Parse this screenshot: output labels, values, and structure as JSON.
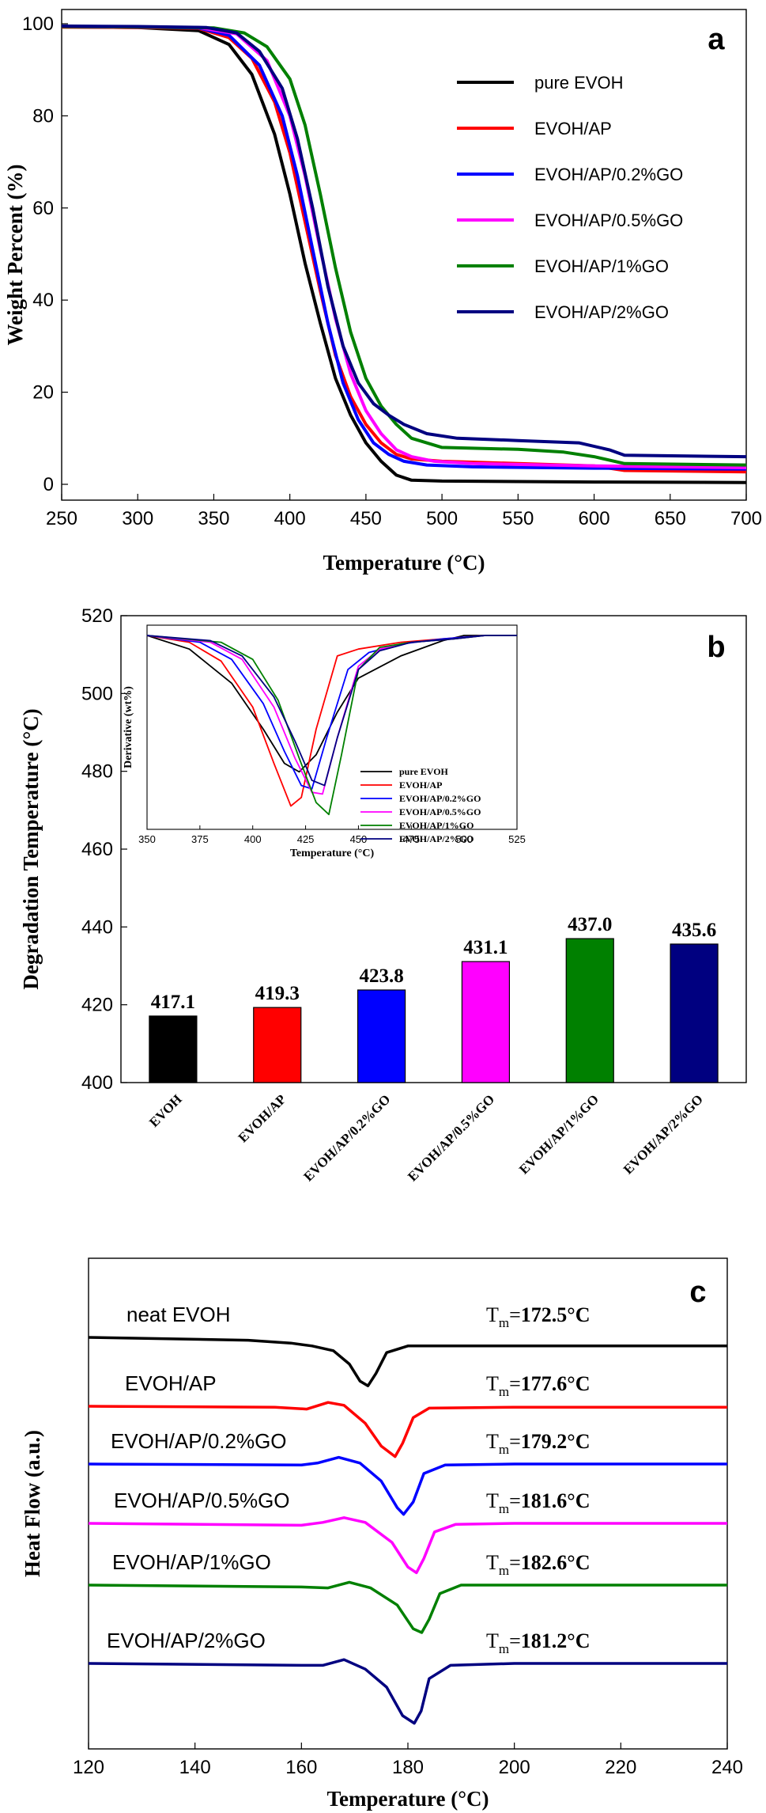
{
  "colors": {
    "black": "#000000",
    "red": "#ff0000",
    "blue": "#0000ff",
    "magenta": "#ff00ff",
    "green": "#008000",
    "navy": "#000080"
  },
  "chart_data": [
    {
      "panel_label": "a",
      "type": "line",
      "xlabel": "Temperature (°C)",
      "ylabel": "Weight Percent (%)",
      "xlim": [
        250,
        700
      ],
      "ylim": [
        0,
        100
      ],
      "xticks": [
        250,
        300,
        350,
        400,
        450,
        500,
        550,
        600,
        650,
        700
      ],
      "yticks": [
        0,
        20,
        40,
        60,
        80,
        100
      ],
      "legend_position": "top-right",
      "grid": false,
      "series": [
        {
          "name": "pure EVOH",
          "color": "#000000",
          "x": [
            250,
            300,
            340,
            360,
            375,
            390,
            400,
            410,
            420,
            430,
            440,
            450,
            460,
            470,
            480,
            500,
            600,
            700
          ],
          "y": [
            99.3,
            99.2,
            98.5,
            95.5,
            89,
            76,
            63,
            48,
            35,
            23,
            15,
            9,
            5,
            2,
            0.9,
            0.7,
            0.5,
            0.4
          ]
        },
        {
          "name": "EVOH/AP",
          "color": "#ff0000",
          "x": [
            250,
            300,
            340,
            360,
            375,
            390,
            400,
            410,
            420,
            430,
            440,
            450,
            460,
            470,
            480,
            500,
            550,
            600,
            620,
            700
          ],
          "y": [
            99.3,
            99.2,
            99,
            97,
            92.5,
            83,
            72,
            57,
            42,
            28,
            19,
            13,
            9,
            6.5,
            5.5,
            5,
            4.5,
            4,
            3,
            2.7
          ]
        },
        {
          "name": "EVOH/AP/0.2%GO",
          "color": "#0000ff",
          "x": [
            250,
            300,
            340,
            360,
            380,
            395,
            405,
            415,
            425,
            435,
            445,
            455,
            465,
            475,
            490,
            520,
            600,
            700
          ],
          "y": [
            99.4,
            99.3,
            99.1,
            97.5,
            91,
            80,
            67,
            51,
            35,
            22,
            14,
            9,
            6.5,
            5,
            4.2,
            3.8,
            3.5,
            3.3
          ]
        },
        {
          "name": "EVOH/AP/0.5%GO",
          "color": "#ff00ff",
          "x": [
            250,
            300,
            340,
            365,
            385,
            400,
            410,
            420,
            430,
            440,
            450,
            460,
            470,
            480,
            495,
            520,
            600,
            700
          ],
          "y": [
            99.4,
            99.3,
            99.2,
            97.8,
            92,
            80,
            67,
            51,
            36,
            24,
            16,
            11,
            7.5,
            6,
            5,
            4.5,
            4,
            3.6
          ]
        },
        {
          "name": "EVOH/AP/1%GO",
          "color": "#008000",
          "x": [
            250,
            300,
            350,
            370,
            385,
            400,
            410,
            420,
            430,
            440,
            450,
            460,
            470,
            480,
            500,
            550,
            580,
            600,
            620,
            700
          ],
          "y": [
            99.4,
            99.3,
            99.1,
            98,
            95,
            88,
            78,
            63,
            47,
            33,
            23,
            17,
            13,
            10,
            8,
            7.6,
            7,
            6,
            4.5,
            4.2
          ]
        },
        {
          "name": "EVOH/AP/2%GO",
          "color": "#000080",
          "x": [
            250,
            300,
            345,
            365,
            380,
            395,
            405,
            415,
            425,
            435,
            445,
            455,
            465,
            475,
            490,
            510,
            550,
            590,
            610,
            620,
            700
          ],
          "y": [
            99.5,
            99.4,
            99.2,
            98,
            94,
            86,
            75,
            60,
            43,
            30,
            22,
            17.5,
            15,
            13,
            11,
            10,
            9.5,
            9,
            7.5,
            6.3,
            6
          ]
        }
      ]
    },
    {
      "panel_label": "b",
      "type": "bar",
      "ylabel": "Degradation Temperature (°C)",
      "ylim": [
        400,
        520
      ],
      "yticks": [
        400,
        420,
        440,
        460,
        480,
        500,
        520
      ],
      "grid": false,
      "categories": [
        "EVOH",
        "EVOH/AP",
        "EVOH/AP/0.2%GO",
        "EVOH/AP/0.5%GO",
        "EVOH/AP/1%GO",
        "EVOH/AP/2%GO"
      ],
      "values": [
        417.1,
        419.3,
        423.8,
        431.1,
        437.0,
        435.6
      ],
      "value_labels": [
        "417.1",
        "419.3",
        "423.8",
        "431.1",
        "437.0",
        "435.6"
      ],
      "bar_colors": [
        "#000000",
        "#ff0000",
        "#0000ff",
        "#ff00ff",
        "#008000",
        "#000080"
      ]
    },
    {
      "panel_label": "b-inset",
      "type": "line",
      "xlabel": "Temperature (°C)",
      "ylabel": "Derivative (wt%)",
      "xlim": [
        350,
        525
      ],
      "xticks": [
        350,
        375,
        400,
        425,
        450,
        475,
        500,
        525
      ],
      "legend_position": "right",
      "grid": false,
      "series": [
        {
          "name": "pure EVOH",
          "color": "#000000",
          "x": [
            350,
            370,
            390,
            405,
            415,
            422,
            430,
            440,
            450,
            470,
            490,
            500,
            510,
            525
          ],
          "y": [
            -0.0,
            -0.08,
            -0.28,
            -0.55,
            -0.75,
            -0.8,
            -0.7,
            -0.45,
            -0.25,
            -0.12,
            -0.03,
            0.0,
            0.0,
            0.0
          ]
        },
        {
          "name": "EVOH/AP",
          "color": "#ff0000",
          "x": [
            350,
            370,
            385,
            400,
            410,
            418,
            423,
            430,
            440,
            450,
            470,
            490,
            510,
            525
          ],
          "y": [
            0.0,
            -0.04,
            -0.15,
            -0.42,
            -0.75,
            -1.0,
            -0.95,
            -0.55,
            -0.12,
            -0.08,
            -0.04,
            -0.02,
            0.0,
            0.0
          ]
        },
        {
          "name": "EVOH/AP/0.2%GO",
          "color": "#0000ff",
          "x": [
            350,
            375,
            390,
            405,
            415,
            423,
            428,
            435,
            445,
            455,
            470,
            490,
            510,
            525
          ],
          "y": [
            0.0,
            -0.04,
            -0.14,
            -0.4,
            -0.68,
            -0.88,
            -0.9,
            -0.6,
            -0.2,
            -0.1,
            -0.05,
            -0.02,
            0.0,
            0.0
          ]
        },
        {
          "name": "EVOH/AP/0.5%GO",
          "color": "#ff00ff",
          "x": [
            350,
            380,
            395,
            410,
            420,
            428,
            433,
            440,
            450,
            460,
            475,
            495,
            510,
            525
          ],
          "y": [
            0.0,
            -0.04,
            -0.14,
            -0.42,
            -0.72,
            -0.92,
            -0.93,
            -0.6,
            -0.18,
            -0.08,
            -0.04,
            -0.02,
            0.0,
            0.0
          ]
        },
        {
          "name": "EVOH/AP/1%GO",
          "color": "#008000",
          "x": [
            350,
            385,
            400,
            412,
            422,
            430,
            436,
            442,
            450,
            460,
            475,
            495,
            510,
            525
          ],
          "y": [
            0.0,
            -0.04,
            -0.14,
            -0.38,
            -0.72,
            -0.98,
            -1.05,
            -0.7,
            -0.2,
            -0.07,
            -0.04,
            -0.02,
            0.0,
            0.0
          ]
        },
        {
          "name": "EVOH/AP/2%GO",
          "color": "#000080",
          "x": [
            350,
            380,
            395,
            410,
            420,
            428,
            434,
            440,
            450,
            460,
            475,
            495,
            510,
            525
          ],
          "y": [
            0.0,
            -0.03,
            -0.12,
            -0.36,
            -0.62,
            -0.85,
            -0.88,
            -0.6,
            -0.2,
            -0.09,
            -0.04,
            -0.02,
            0.0,
            0.0
          ]
        }
      ]
    },
    {
      "panel_label": "c",
      "type": "line",
      "xlabel": "Temperature (°C)",
      "ylabel": "Heat Flow (a.u.)",
      "xlim": [
        120,
        240
      ],
      "xticks": [
        120,
        140,
        160,
        180,
        200,
        220,
        240
      ],
      "grid": false,
      "series": [
        {
          "name": "neat EVOH",
          "color": "#000000",
          "tm_value": "172.5",
          "offset": 0,
          "x": [
            120,
            150,
            158,
            162,
            166,
            169,
            171,
            172.5,
            174,
            176,
            180,
            200,
            240
          ],
          "y": [
            0,
            -0.3,
            -0.6,
            -0.9,
            -1.4,
            -2.8,
            -4.6,
            -5.1,
            -3.8,
            -1.6,
            -0.9,
            -0.9,
            -0.9
          ]
        },
        {
          "name": "EVOH/AP",
          "color": "#ff0000",
          "tm_value": "177.6",
          "offset": 0,
          "x": [
            120,
            155,
            161,
            165,
            168,
            172,
            175,
            177.6,
            179,
            181,
            184,
            200,
            240
          ],
          "y": [
            0,
            -0.1,
            -0.3,
            0.4,
            0.1,
            -1.8,
            -4.2,
            -5.3,
            -3.9,
            -1.2,
            -0.2,
            -0.1,
            -0.1
          ]
        },
        {
          "name": "EVOH/AP/0.2%GO",
          "color": "#0000ff",
          "tm_value": "179.2",
          "offset": 0,
          "x": [
            120,
            160,
            163,
            167,
            171,
            175,
            178,
            179.2,
            181,
            183,
            187,
            200,
            240
          ],
          "y": [
            0,
            -0.1,
            0.1,
            0.7,
            0.1,
            -1.8,
            -4.6,
            -5.3,
            -4.0,
            -1.0,
            -0.1,
            0.0,
            0.0
          ]
        },
        {
          "name": "EVOH/AP/0.5%GO",
          "color": "#ff00ff",
          "tm_value": "181.6",
          "offset": 0,
          "x": [
            120,
            160,
            164,
            168,
            172,
            177,
            180,
            181.6,
            183,
            185,
            189,
            200,
            240
          ],
          "y": [
            0,
            -0.2,
            0.1,
            0.6,
            0.1,
            -2.0,
            -4.6,
            -5.2,
            -3.7,
            -0.9,
            -0.1,
            0.0,
            0.0
          ]
        },
        {
          "name": "EVOH/AP/1%GO",
          "color": "#008000",
          "tm_value": "182.6",
          "offset": 0,
          "x": [
            120,
            160,
            165,
            169,
            173,
            178,
            181,
            182.6,
            184,
            186,
            190,
            200,
            240
          ],
          "y": [
            0,
            -0.2,
            -0.3,
            0.3,
            -0.3,
            -2.1,
            -4.6,
            -5.0,
            -3.6,
            -0.9,
            0.0,
            0.0,
            0.0
          ]
        },
        {
          "name": "EVOH/AP/2%GO",
          "color": "#000080",
          "tm_value": "181.2",
          "offset": 0,
          "x": [
            120,
            160,
            164,
            168,
            172,
            176,
            179,
            181.2,
            182.5,
            184,
            188,
            200,
            240
          ],
          "y": [
            0,
            -0.2,
            -0.2,
            0.4,
            -0.6,
            -2.5,
            -5.5,
            -6.3,
            -5.0,
            -1.6,
            -0.2,
            0.0,
            0.0
          ]
        }
      ]
    }
  ],
  "text": {
    "panel_a": "a",
    "panel_b": "b",
    "panel_c": "c",
    "tm_prefix": "T",
    "tm_sub": "m",
    "tm_eq": "=",
    "tm_unit": "°C"
  }
}
